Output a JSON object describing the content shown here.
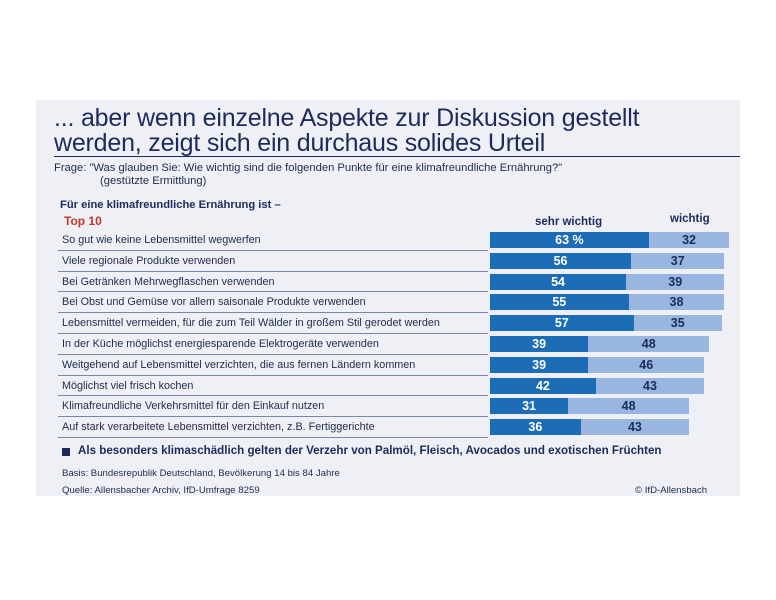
{
  "headline": "... aber wenn einzelne Aspekte zur Diskussion gestellt werden, zeigt sich ein durchaus solides Urteil",
  "question": {
    "line1": "Frage: \"Was glauben Sie: Wie wichtig sind die folgenden Punkte für eine klimafreundliche Ernährung?\"",
    "line2": "(gestützte Ermittlung)"
  },
  "chart_heading": "Für eine klimafreundliche Ernährung ist –",
  "top10_label": "Top 10",
  "note": "Als besonders klimaschädlich gelten der Verzehr von Palmöl, Fleisch, Avocados und exotischen Früchten",
  "footer": {
    "basis": "Basis: Bundesrepublik Deutschland, Bevölkerung 14 bis 84 Jahre",
    "source": "Quelle: Allensbacher Archiv, IfD-Umfrage 8259",
    "copyright": "© IfD-Allensbach"
  },
  "colors": {
    "sehr_wichtig": "#1c6cb6",
    "wichtig": "#98b6e0",
    "accent": "#c0392b",
    "navy": "#1c2a5c"
  },
  "chart_data": {
    "type": "bar",
    "orientation": "horizontal",
    "stacked": true,
    "title": "Für eine klimafreundliche Ernährung ist –",
    "unit": "%",
    "categories": [
      "So gut wie keine Lebensmittel wegwerfen",
      "Viele regionale Produkte verwenden",
      "Bei Getränken Mehrwegflaschen verwenden",
      "Bei Obst und Gemüse vor allem saisonale Produkte verwenden",
      "Lebensmittel vermeiden, für die zum Teil Wälder in großem Stil gerodet werden",
      "In der Küche möglichst energiesparende Elektrogeräte verwenden",
      "Weitgehend auf Lebensmittel verzichten, die aus fernen Ländern kommen",
      "Möglichst viel frisch kochen",
      "Klimafreundliche Verkehrsmittel für den Einkauf nutzen",
      "Auf stark verarbeitete Lebensmittel verzichten, z.B. Fertiggerichte"
    ],
    "series": [
      {
        "name": "sehr wichtig",
        "values": [
          63,
          56,
          54,
          55,
          57,
          39,
          39,
          42,
          31,
          36
        ]
      },
      {
        "name": "wichtig",
        "values": [
          32,
          37,
          39,
          38,
          35,
          48,
          46,
          43,
          48,
          43
        ]
      }
    ],
    "value_labels": [
      [
        "63 %",
        "32"
      ],
      [
        "56",
        "37"
      ],
      [
        "54",
        "39"
      ],
      [
        "55",
        "38"
      ],
      [
        "57",
        "35"
      ],
      [
        "39",
        "48"
      ],
      [
        "39",
        "46"
      ],
      [
        "42",
        "43"
      ],
      [
        "31",
        "48"
      ],
      [
        "36",
        "43"
      ]
    ],
    "xlim": [
      0,
      100
    ]
  }
}
